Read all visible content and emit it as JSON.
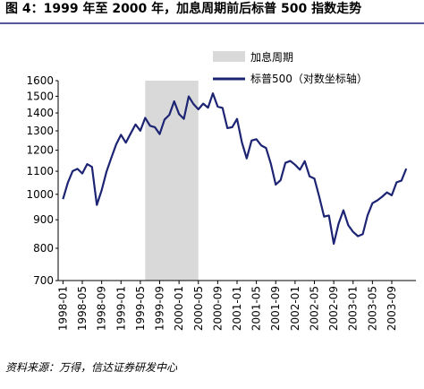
{
  "chart_data": {
    "type": "line",
    "title": "图 4：1999 年至 2000 年，加息周期前后标普 500 指数走势",
    "source": "资料来源：万得，信达证券研发中心",
    "x": [
      "1998-01",
      "1998-02",
      "1998-03",
      "1998-04",
      "1998-05",
      "1998-06",
      "1998-07",
      "1998-08",
      "1998-09",
      "1998-10",
      "1998-11",
      "1998-12",
      "1999-01",
      "1999-02",
      "1999-03",
      "1999-04",
      "1999-05",
      "1999-06",
      "1999-07",
      "1999-08",
      "1999-09",
      "1999-10",
      "1999-11",
      "1999-12",
      "2000-01",
      "2000-02",
      "2000-03",
      "2000-04",
      "2000-05",
      "2000-06",
      "2000-07",
      "2000-08",
      "2000-09",
      "2000-10",
      "2000-11",
      "2000-12",
      "2001-01",
      "2001-02",
      "2001-03",
      "2001-04",
      "2001-05",
      "2001-06",
      "2001-07",
      "2001-08",
      "2001-09",
      "2001-10",
      "2001-11",
      "2001-12",
      "2002-01",
      "2002-02",
      "2002-03",
      "2002-04",
      "2002-05",
      "2002-06",
      "2002-07",
      "2002-08",
      "2002-09",
      "2002-10",
      "2002-11",
      "2002-12",
      "2003-01",
      "2003-02",
      "2003-03",
      "2003-04",
      "2003-05",
      "2003-06",
      "2003-07",
      "2003-08",
      "2003-09",
      "2003-10",
      "2003-11",
      "2003-12"
    ],
    "series": [
      {
        "name": "标普500（对数坐标轴）",
        "color": "#1c2473",
        "values": [
          980,
          1049,
          1101,
          1111,
          1090,
          1133,
          1120,
          957,
          1017,
          1098,
          1163,
          1229,
          1279,
          1238,
          1286,
          1335,
          1301,
          1372,
          1328,
          1320,
          1283,
          1362,
          1389,
          1469,
          1394,
          1366,
          1499,
          1452,
          1421,
          1455,
          1431,
          1518,
          1437,
          1429,
          1315,
          1320,
          1366,
          1240,
          1160,
          1249,
          1256,
          1224,
          1211,
          1134,
          1041,
          1060,
          1139,
          1148,
          1130,
          1107,
          1147,
          1077,
          1067,
          990,
          912,
          916,
          815,
          886,
          936,
          880,
          856,
          841,
          848,
          917,
          964,
          975,
          990,
          1008,
          996,
          1051,
          1058,
          1112
        ]
      }
    ],
    "shade": {
      "label": "加息周期",
      "start": "1999-06",
      "end": "2000-05",
      "color": "#d9d9d9"
    },
    "log_y": true,
    "xlim": [
      "1997-12",
      "2004-02"
    ],
    "xticks": [
      "1998-01",
      "1998-05",
      "1998-09",
      "1999-01",
      "1999-05",
      "1999-09",
      "2000-01",
      "2000-05",
      "2000-09",
      "2001-01",
      "2001-05",
      "2001-09",
      "2002-01",
      "2002-05",
      "2002-09",
      "2003-01",
      "2003-05",
      "2003-09"
    ],
    "ylim": [
      700,
      1600
    ],
    "yticks": [
      700,
      800,
      900,
      1000,
      1100,
      1200,
      1300,
      1400,
      1500,
      1600
    ]
  }
}
